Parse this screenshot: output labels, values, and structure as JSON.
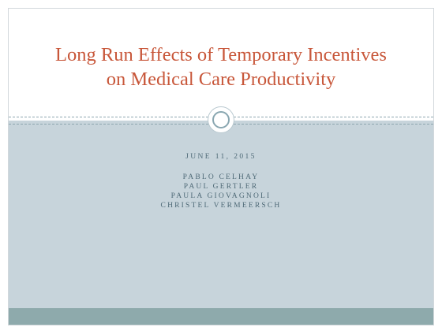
{
  "slide": {
    "title_lines": [
      "Long Run Effects of Temporary Incentives",
      "on Medical Care Productivity"
    ],
    "date": "JUNE 11, 2015",
    "authors": [
      "PABLO CELHAY",
      "PAUL GERTLER",
      "PAULA GIOVAGNOLI",
      "CHRISTEL VERMEERSCH"
    ]
  },
  "colors": {
    "title": "#c8573a",
    "subtitle_text": "#4f6a77",
    "lower_band": "#c7d4db",
    "bottom_bar": "#8eaaac",
    "divider": "#8ea7b0"
  }
}
